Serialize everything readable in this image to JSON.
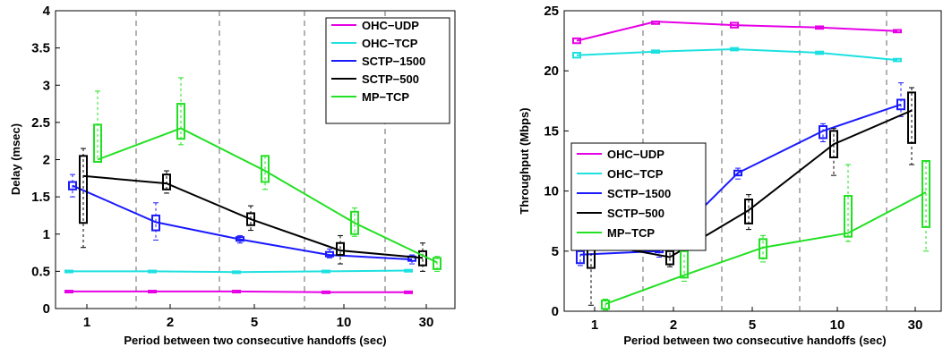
{
  "chart_data": [
    {
      "type": "box-line",
      "title": "",
      "xlabel": "Period between two consecutive handoffs (sec)",
      "ylabel": "Delay (msec)",
      "categories": [
        "1",
        "2",
        "5",
        "10",
        "30"
      ],
      "y_ticks": [
        "0",
        "0.5",
        "1",
        "1.5",
        "2",
        "2.5",
        "3",
        "3.5",
        "4"
      ],
      "ylim": [
        0,
        4
      ],
      "grid": "vertical dashed separators between categories",
      "legend_position": "top-right",
      "series": [
        {
          "name": "OHC−UDP",
          "color": "#e600e6",
          "values": [
            0.23,
            0.23,
            0.23,
            0.22,
            0.22
          ],
          "boxes": [
            [
              0.22,
              0.24
            ],
            [
              0.22,
              0.24
            ],
            [
              0.22,
              0.24
            ],
            [
              0.21,
              0.23
            ],
            [
              0.21,
              0.23
            ]
          ]
        },
        {
          "name": "OHC−TCP",
          "color": "#1ee0e0",
          "values": [
            0.5,
            0.5,
            0.49,
            0.5,
            0.51
          ],
          "boxes": [
            [
              0.49,
              0.51
            ],
            [
              0.49,
              0.51
            ],
            [
              0.48,
              0.5
            ],
            [
              0.49,
              0.51
            ],
            [
              0.5,
              0.52
            ]
          ]
        },
        {
          "name": "SCTP−1500",
          "color": "#1a1aff",
          "values": [
            1.65,
            1.16,
            0.93,
            0.72,
            0.66
          ],
          "boxes": [
            [
              1.6,
              1.7
            ],
            [
              1.05,
              1.25
            ],
            [
              0.91,
              0.96
            ],
            [
              0.7,
              0.76
            ],
            [
              0.64,
              0.7
            ]
          ],
          "whiskers": [
            [
              1.5,
              1.8
            ],
            [
              0.92,
              1.42
            ],
            [
              0.88,
              0.98
            ],
            [
              0.68,
              0.8
            ],
            [
              0.6,
              0.72
            ]
          ]
        },
        {
          "name": "SCTP−500",
          "color": "#000000",
          "values": [
            1.78,
            1.68,
            1.2,
            0.78,
            0.68
          ],
          "boxes": [
            [
              1.15,
              2.05
            ],
            [
              1.6,
              1.8
            ],
            [
              1.12,
              1.28
            ],
            [
              0.72,
              0.88
            ],
            [
              0.58,
              0.77
            ]
          ],
          "whiskers": [
            [
              0.82,
              2.15
            ],
            [
              1.55,
              1.85
            ],
            [
              1.05,
              1.38
            ],
            [
              0.6,
              0.98
            ],
            [
              0.5,
              0.88
            ]
          ]
        },
        {
          "name": "MP−TCP",
          "color": "#22e022",
          "values": [
            2.0,
            2.42,
            1.85,
            1.15,
            0.62
          ],
          "boxes": [
            [
              1.97,
              2.47
            ],
            [
              2.28,
              2.75
            ],
            [
              1.7,
              2.05
            ],
            [
              1.0,
              1.3
            ],
            [
              0.53,
              0.68
            ]
          ],
          "whiskers": [
            [
              1.97,
              2.92
            ],
            [
              2.2,
              3.1
            ],
            [
              1.6,
              2.05
            ],
            [
              0.97,
              1.35
            ],
            [
              0.5,
              0.7
            ]
          ]
        }
      ]
    },
    {
      "type": "box-line",
      "title": "",
      "xlabel": "Period between two consecutive handoffs (sec)",
      "ylabel": "Throughput (Mbps)",
      "categories": [
        "1",
        "2",
        "5",
        "10",
        "30"
      ],
      "y_ticks": [
        "0",
        "5",
        "10",
        "15",
        "20",
        "25"
      ],
      "ylim": [
        0,
        25
      ],
      "grid": "vertical dashed separators between categories",
      "legend_position": "center-left",
      "series": [
        {
          "name": "OHC−UDP",
          "color": "#e600e6",
          "values": [
            22.5,
            24.1,
            23.8,
            23.6,
            23.3
          ],
          "boxes": [
            [
              22.3,
              22.7
            ],
            [
              23.9,
              24.1
            ],
            [
              23.6,
              24.0
            ],
            [
              23.5,
              23.7
            ],
            [
              23.2,
              23.4
            ]
          ]
        },
        {
          "name": "OHC−TCP",
          "color": "#1ee0e0",
          "values": [
            21.3,
            21.6,
            21.8,
            21.5,
            20.9
          ],
          "boxes": [
            [
              21.1,
              21.5
            ],
            [
              21.5,
              21.7
            ],
            [
              21.7,
              21.9
            ],
            [
              21.4,
              21.6
            ],
            [
              20.8,
              21.0
            ]
          ]
        },
        {
          "name": "SCTP−1500",
          "color": "#1a1aff",
          "values": [
            4.7,
            5.0,
            11.5,
            15.0,
            17.2
          ],
          "boxes": [
            [
              4.0,
              5.0
            ],
            [
              4.9,
              6.5
            ],
            [
              11.3,
              11.7
            ],
            [
              14.4,
              15.4
            ],
            [
              16.8,
              17.6
            ]
          ],
          "whiskers": [
            [
              3.8,
              5.2
            ],
            [
              4.5,
              6.8
            ],
            [
              11.0,
              11.9
            ],
            [
              14.1,
              15.6
            ],
            [
              16.2,
              19.0
            ]
          ]
        },
        {
          "name": "SCTP−500",
          "color": "#000000",
          "values": [
            5.7,
            4.5,
            8.4,
            13.9,
            16.7
          ],
          "boxes": [
            [
              3.6,
              6.3
            ],
            [
              3.9,
              5.0
            ],
            [
              7.3,
              9.3
            ],
            [
              12.8,
              15.0
            ],
            [
              14.0,
              18.2
            ]
          ],
          "whiskers": [
            [
              0.5,
              6.6
            ],
            [
              3.7,
              5.3
            ],
            [
              6.8,
              9.7
            ],
            [
              11.3,
              15.2
            ],
            [
              12.2,
              18.6
            ]
          ]
        },
        {
          "name": "MP−TCP",
          "color": "#22e022",
          "values": [
            0.6,
            3.0,
            5.3,
            6.5,
            9.9
          ],
          "boxes": [
            [
              0.2,
              0.9
            ],
            [
              2.8,
              5.0
            ],
            [
              4.4,
              6.0
            ],
            [
              6.2,
              9.6
            ],
            [
              7.0,
              12.5
            ]
          ],
          "whiskers": [
            [
              0.1,
              1.0
            ],
            [
              2.5,
              5.6
            ],
            [
              4.1,
              6.3
            ],
            [
              5.8,
              12.2
            ],
            [
              5.0,
              12.5
            ]
          ]
        }
      ]
    }
  ]
}
